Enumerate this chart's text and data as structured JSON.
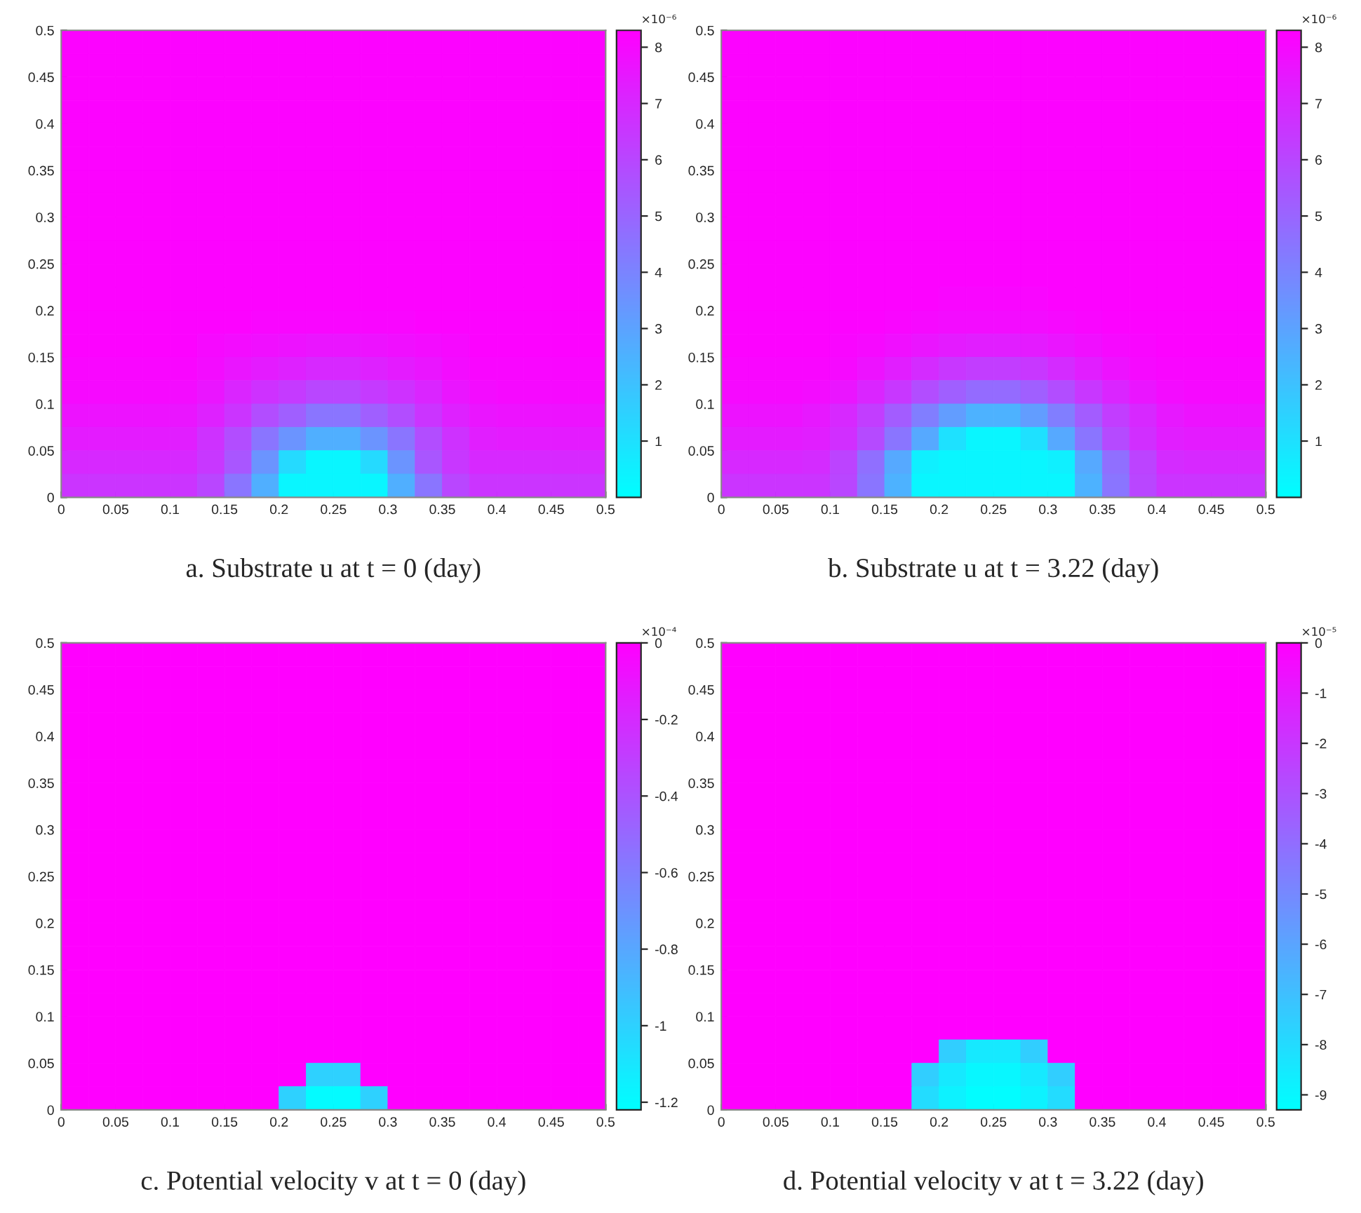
{
  "chart_data": [
    {
      "type": "heatmap",
      "title": "a. Substrate u at t = 0 (day)",
      "xlim": [
        0,
        0.5
      ],
      "ylim": [
        0,
        0.5
      ],
      "xticks": [
        0,
        0.05,
        0.1,
        0.15,
        0.2,
        0.25,
        0.3,
        0.35,
        0.4,
        0.45,
        0.5
      ],
      "yticks": [
        0,
        0.05,
        0.1,
        0.15,
        0.2,
        0.25,
        0.3,
        0.35,
        0.4,
        0.45,
        0.5
      ],
      "clim": [
        0,
        8.3
      ],
      "cticks": [
        1,
        2,
        3,
        4,
        5,
        6,
        7,
        8
      ],
      "clabel": "×10⁻⁶",
      "cells": [
        [
          8.2,
          8.2,
          8.2,
          8.2,
          8.2,
          8.2,
          8.2,
          8.2,
          8.2,
          8.2,
          8.2,
          8.2,
          8.2,
          8.2,
          8.2,
          8.2,
          8.2,
          8.2,
          8.2,
          8.2
        ],
        [
          8.2,
          8.2,
          8.2,
          8.2,
          8.2,
          8.2,
          8.2,
          8.2,
          8.2,
          8.2,
          8.2,
          8.2,
          8.2,
          8.2,
          8.2,
          8.2,
          8.2,
          8.2,
          8.2,
          8.2
        ],
        [
          8.2,
          8.2,
          8.2,
          8.2,
          8.2,
          8.2,
          8.2,
          8.2,
          8.2,
          8.2,
          8.2,
          8.2,
          8.2,
          8.2,
          8.2,
          8.2,
          8.2,
          8.2,
          8.2,
          8.2
        ],
        [
          8.2,
          8.2,
          8.2,
          8.2,
          8.2,
          8.2,
          8.2,
          8.2,
          8.2,
          8.2,
          8.2,
          8.2,
          8.2,
          8.2,
          8.2,
          8.2,
          8.2,
          8.2,
          8.2,
          8.2
        ],
        [
          8.2,
          8.2,
          8.2,
          8.2,
          8.2,
          8.2,
          8.2,
          8.2,
          8.2,
          8.2,
          8.2,
          8.2,
          8.2,
          8.2,
          8.2,
          8.2,
          8.2,
          8.2,
          8.2,
          8.2
        ],
        [
          8.2,
          8.2,
          8.2,
          8.2,
          8.2,
          8.2,
          8.2,
          8.2,
          8.2,
          8.2,
          8.2,
          8.2,
          8.2,
          8.2,
          8.2,
          8.2,
          8.2,
          8.2,
          8.2,
          8.2
        ],
        [
          8.2,
          8.2,
          8.2,
          8.2,
          8.2,
          8.2,
          8.2,
          8.2,
          8.2,
          8.2,
          8.2,
          8.2,
          8.2,
          8.2,
          8.2,
          8.2,
          8.2,
          8.2,
          8.2,
          8.2
        ],
        [
          8.2,
          8.2,
          8.2,
          8.2,
          8.2,
          8.2,
          8.2,
          8.2,
          8.2,
          8.2,
          8.2,
          8.2,
          8.2,
          8.2,
          8.2,
          8.2,
          8.2,
          8.2,
          8.2,
          8.2
        ],
        [
          8.2,
          8.2,
          8.2,
          8.2,
          8.2,
          8.2,
          8.2,
          8.2,
          8.2,
          8.2,
          8.2,
          8.2,
          8.2,
          8.2,
          8.2,
          8.2,
          8.2,
          8.2,
          8.2,
          8.2
        ],
        [
          8.2,
          8.2,
          8.2,
          8.2,
          8.2,
          8.2,
          8.2,
          8.2,
          8.2,
          8.2,
          8.2,
          8.2,
          8.2,
          8.2,
          8.2,
          8.2,
          8.2,
          8.2,
          8.2,
          8.2
        ],
        [
          8.2,
          8.2,
          8.2,
          8.2,
          8.2,
          8.2,
          8.2,
          8.2,
          8.2,
          8.2,
          8.2,
          8.2,
          8.2,
          8.2,
          8.2,
          8.2,
          8.2,
          8.2,
          8.2,
          8.2
        ],
        [
          8.2,
          8.2,
          8.2,
          8.2,
          8.2,
          8.2,
          8.2,
          8.2,
          8.2,
          8.2,
          8.2,
          8.2,
          8.2,
          8.2,
          8.2,
          8.2,
          8.2,
          8.2,
          8.2,
          8.2
        ],
        [
          8.2,
          8.2,
          8.2,
          8.2,
          8.2,
          8.2,
          8.2,
          8.1,
          8.1,
          8.1,
          8.1,
          8.1,
          8.1,
          8.2,
          8.2,
          8.2,
          8.2,
          8.2,
          8.2,
          8.2
        ],
        [
          8.2,
          8.2,
          8.2,
          8.2,
          8.2,
          8.0,
          7.9,
          7.8,
          7.7,
          7.6,
          7.6,
          7.7,
          7.8,
          7.9,
          8.0,
          8.2,
          8.2,
          8.2,
          8.2,
          8.2
        ],
        [
          8.1,
          8.1,
          8.1,
          8.1,
          8.1,
          7.9,
          7.6,
          7.4,
          7.2,
          7.0,
          7.0,
          7.2,
          7.4,
          7.6,
          7.9,
          8.1,
          8.1,
          8.1,
          8.1,
          8.1
        ],
        [
          8.0,
          8.0,
          8.0,
          8.0,
          7.9,
          7.6,
          7.1,
          6.7,
          6.4,
          6.0,
          6.0,
          6.4,
          6.7,
          7.1,
          7.6,
          7.9,
          8.0,
          8.0,
          8.0,
          8.0
        ],
        [
          7.7,
          7.7,
          7.7,
          7.7,
          7.6,
          7.2,
          6.6,
          5.8,
          5.2,
          4.5,
          4.5,
          5.2,
          5.8,
          6.6,
          7.2,
          7.6,
          7.7,
          7.7,
          7.7,
          7.7
        ],
        [
          7.4,
          7.4,
          7.4,
          7.4,
          7.3,
          6.7,
          5.8,
          4.5,
          3.5,
          2.6,
          2.6,
          3.5,
          4.5,
          5.8,
          6.7,
          7.3,
          7.4,
          7.4,
          7.4,
          7.4
        ],
        [
          7.0,
          7.0,
          7.0,
          7.0,
          7.0,
          6.5,
          5.5,
          3.5,
          1.2,
          0.3,
          0.3,
          1.2,
          3.5,
          5.5,
          6.5,
          7.0,
          7.0,
          7.0,
          7.0,
          7.0
        ],
        [
          6.6,
          6.6,
          6.6,
          6.6,
          6.6,
          6.0,
          4.5,
          2.6,
          0.3,
          0.3,
          0.3,
          0.3,
          2.6,
          4.5,
          6.0,
          6.6,
          6.6,
          6.6,
          6.6,
          6.6
        ]
      ]
    },
    {
      "type": "heatmap",
      "title": "b. Substrate u at t = 3.22 (day)",
      "xlim": [
        0,
        0.5
      ],
      "ylim": [
        0,
        0.5
      ],
      "xticks": [
        0,
        0.05,
        0.1,
        0.15,
        0.2,
        0.25,
        0.3,
        0.35,
        0.4,
        0.45,
        0.5
      ],
      "yticks": [
        0,
        0.05,
        0.1,
        0.15,
        0.2,
        0.25,
        0.3,
        0.35,
        0.4,
        0.45,
        0.5
      ],
      "clim": [
        0,
        8.3
      ],
      "cticks": [
        1,
        2,
        3,
        4,
        5,
        6,
        7,
        8
      ],
      "clabel": "×10⁻⁶",
      "cells": [
        [
          8.2,
          8.2,
          8.2,
          8.2,
          8.2,
          8.2,
          8.2,
          8.2,
          8.2,
          8.2,
          8.2,
          8.2,
          8.2,
          8.2,
          8.2,
          8.2,
          8.2,
          8.2,
          8.2,
          8.2
        ],
        [
          8.2,
          8.2,
          8.2,
          8.2,
          8.2,
          8.2,
          8.2,
          8.2,
          8.2,
          8.2,
          8.2,
          8.2,
          8.2,
          8.2,
          8.2,
          8.2,
          8.2,
          8.2,
          8.2,
          8.2
        ],
        [
          8.2,
          8.2,
          8.2,
          8.2,
          8.2,
          8.2,
          8.2,
          8.2,
          8.2,
          8.2,
          8.2,
          8.2,
          8.2,
          8.2,
          8.2,
          8.2,
          8.2,
          8.2,
          8.2,
          8.2
        ],
        [
          8.2,
          8.2,
          8.2,
          8.2,
          8.2,
          8.2,
          8.2,
          8.2,
          8.2,
          8.2,
          8.2,
          8.2,
          8.2,
          8.2,
          8.2,
          8.2,
          8.2,
          8.2,
          8.2,
          8.2
        ],
        [
          8.2,
          8.2,
          8.2,
          8.2,
          8.2,
          8.2,
          8.2,
          8.2,
          8.2,
          8.2,
          8.2,
          8.2,
          8.2,
          8.2,
          8.2,
          8.2,
          8.2,
          8.2,
          8.2,
          8.2
        ],
        [
          8.2,
          8.2,
          8.2,
          8.2,
          8.2,
          8.2,
          8.2,
          8.2,
          8.2,
          8.2,
          8.2,
          8.2,
          8.2,
          8.2,
          8.2,
          8.2,
          8.2,
          8.2,
          8.2,
          8.2
        ],
        [
          8.2,
          8.2,
          8.2,
          8.2,
          8.2,
          8.2,
          8.2,
          8.2,
          8.2,
          8.2,
          8.2,
          8.2,
          8.2,
          8.2,
          8.2,
          8.2,
          8.2,
          8.2,
          8.2,
          8.2
        ],
        [
          8.2,
          8.2,
          8.2,
          8.2,
          8.2,
          8.2,
          8.2,
          8.2,
          8.2,
          8.2,
          8.2,
          8.2,
          8.2,
          8.2,
          8.2,
          8.2,
          8.2,
          8.2,
          8.2,
          8.2
        ],
        [
          8.2,
          8.2,
          8.2,
          8.2,
          8.2,
          8.2,
          8.2,
          8.2,
          8.2,
          8.2,
          8.2,
          8.2,
          8.2,
          8.2,
          8.2,
          8.2,
          8.2,
          8.2,
          8.2,
          8.2
        ],
        [
          8.2,
          8.2,
          8.2,
          8.2,
          8.2,
          8.2,
          8.2,
          8.2,
          8.2,
          8.2,
          8.2,
          8.2,
          8.2,
          8.2,
          8.2,
          8.2,
          8.2,
          8.2,
          8.2,
          8.2
        ],
        [
          8.2,
          8.2,
          8.2,
          8.2,
          8.2,
          8.2,
          8.2,
          8.2,
          8.2,
          8.2,
          8.2,
          8.2,
          8.2,
          8.2,
          8.2,
          8.2,
          8.2,
          8.2,
          8.2,
          8.2
        ],
        [
          8.2,
          8.2,
          8.2,
          8.2,
          8.2,
          8.2,
          8.2,
          8.2,
          8.1,
          8.1,
          8.1,
          8.1,
          8.2,
          8.2,
          8.2,
          8.2,
          8.2,
          8.2,
          8.2,
          8.2
        ],
        [
          8.2,
          8.2,
          8.2,
          8.2,
          8.2,
          8.2,
          8.1,
          8.0,
          7.9,
          7.9,
          7.9,
          7.9,
          8.0,
          8.1,
          8.2,
          8.2,
          8.2,
          8.2,
          8.2,
          8.2
        ],
        [
          8.2,
          8.2,
          8.2,
          8.2,
          8.1,
          8.0,
          7.8,
          7.6,
          7.4,
          7.3,
          7.3,
          7.4,
          7.6,
          7.8,
          8.0,
          8.1,
          8.2,
          8.2,
          8.2,
          8.2
        ],
        [
          8.1,
          8.1,
          8.1,
          8.1,
          8.0,
          7.7,
          7.3,
          6.9,
          6.5,
          6.3,
          6.3,
          6.5,
          6.9,
          7.3,
          7.7,
          8.0,
          8.1,
          8.1,
          8.1,
          8.1
        ],
        [
          8.0,
          8.0,
          8.0,
          7.9,
          7.6,
          7.1,
          6.5,
          5.8,
          5.2,
          4.8,
          4.8,
          5.2,
          5.8,
          6.5,
          7.1,
          7.6,
          7.9,
          8.0,
          8.0,
          8.0
        ],
        [
          7.7,
          7.7,
          7.7,
          7.5,
          7.0,
          6.3,
          5.3,
          4.2,
          3.2,
          2.5,
          2.5,
          3.2,
          4.2,
          5.3,
          6.3,
          7.0,
          7.5,
          7.7,
          7.7,
          7.7
        ],
        [
          7.4,
          7.4,
          7.4,
          7.3,
          6.8,
          5.9,
          4.5,
          2.8,
          1.0,
          0.3,
          0.3,
          1.0,
          2.8,
          4.5,
          5.9,
          6.8,
          7.3,
          7.4,
          7.4,
          7.4
        ],
        [
          7.0,
          7.0,
          7.0,
          6.9,
          6.1,
          4.7,
          2.8,
          0.5,
          0.3,
          0.3,
          0.3,
          0.3,
          0.5,
          2.8,
          4.7,
          6.1,
          6.9,
          7.0,
          7.0,
          7.0
        ],
        [
          6.6,
          6.6,
          6.6,
          6.6,
          6.0,
          4.5,
          2.5,
          0.3,
          0.3,
          0.3,
          0.3,
          0.3,
          0.3,
          2.5,
          4.5,
          6.0,
          6.6,
          6.6,
          6.6,
          6.6
        ]
      ]
    },
    {
      "type": "heatmap",
      "title": "c. Potential velocity v at t = 0 (day)",
      "xlim": [
        0,
        0.5
      ],
      "ylim": [
        0,
        0.5
      ],
      "xticks": [
        0,
        0.05,
        0.1,
        0.15,
        0.2,
        0.25,
        0.3,
        0.35,
        0.4,
        0.45,
        0.5
      ],
      "yticks": [
        0,
        0.05,
        0.1,
        0.15,
        0.2,
        0.25,
        0.3,
        0.35,
        0.4,
        0.45,
        0.5
      ],
      "clim": [
        -1.22,
        0
      ],
      "cticks": [
        -1.2,
        -1,
        -0.8,
        -0.6,
        -0.4,
        -0.2,
        0
      ],
      "clabel": "×10⁻⁴",
      "cells": [
        [
          0,
          0,
          0,
          0,
          0,
          0,
          0,
          0,
          0,
          0,
          0,
          0,
          0,
          0,
          0,
          0,
          0,
          0,
          0,
          0
        ],
        [
          0,
          0,
          0,
          0,
          0,
          0,
          0,
          0,
          0,
          0,
          0,
          0,
          0,
          0,
          0,
          0,
          0,
          0,
          0,
          0
        ],
        [
          0,
          0,
          0,
          0,
          0,
          0,
          0,
          0,
          0,
          0,
          0,
          0,
          0,
          0,
          0,
          0,
          0,
          0,
          0,
          0
        ],
        [
          0,
          0,
          0,
          0,
          0,
          0,
          0,
          0,
          0,
          0,
          0,
          0,
          0,
          0,
          0,
          0,
          0,
          0,
          0,
          0
        ],
        [
          0,
          0,
          0,
          0,
          0,
          0,
          0,
          0,
          0,
          0,
          0,
          0,
          0,
          0,
          0,
          0,
          0,
          0,
          0,
          0
        ],
        [
          0,
          0,
          0,
          0,
          0,
          0,
          0,
          0,
          0,
          0,
          0,
          0,
          0,
          0,
          0,
          0,
          0,
          0,
          0,
          0
        ],
        [
          0,
          0,
          0,
          0,
          0,
          0,
          0,
          0,
          0,
          0,
          0,
          0,
          0,
          0,
          0,
          0,
          0,
          0,
          0,
          0
        ],
        [
          0,
          0,
          0,
          0,
          0,
          0,
          0,
          0,
          0,
          0,
          0,
          0,
          0,
          0,
          0,
          0,
          0,
          0,
          0,
          0
        ],
        [
          0,
          0,
          0,
          0,
          0,
          0,
          0,
          0,
          0,
          0,
          0,
          0,
          0,
          0,
          0,
          0,
          0,
          0,
          0,
          0
        ],
        [
          0,
          0,
          0,
          0,
          0,
          0,
          0,
          0,
          0,
          0,
          0,
          0,
          0,
          0,
          0,
          0,
          0,
          0,
          0,
          0
        ],
        [
          0,
          0,
          0,
          0,
          0,
          0,
          0,
          0,
          0,
          0,
          0,
          0,
          0,
          0,
          0,
          0,
          0,
          0,
          0,
          0
        ],
        [
          0,
          0,
          0,
          0,
          0,
          0,
          0,
          0,
          0,
          0,
          0,
          0,
          0,
          0,
          0,
          0,
          0,
          0,
          0,
          0
        ],
        [
          0,
          0,
          0,
          0,
          0,
          0,
          0,
          0,
          0,
          0,
          0,
          0,
          0,
          0,
          0,
          0,
          0,
          0,
          0,
          0
        ],
        [
          0,
          0,
          0,
          0,
          0,
          0,
          0,
          0,
          0,
          0,
          0,
          0,
          0,
          0,
          0,
          0,
          0,
          0,
          0,
          0
        ],
        [
          0,
          0,
          0,
          0,
          0,
          0,
          0,
          0,
          0,
          0,
          0,
          0,
          0,
          0,
          0,
          0,
          0,
          0,
          0,
          0
        ],
        [
          0,
          0,
          0,
          0,
          0,
          0,
          0,
          0,
          0,
          0,
          0,
          0,
          0,
          0,
          0,
          0,
          0,
          0,
          0,
          0
        ],
        [
          0,
          0,
          0,
          0,
          0,
          0,
          0,
          0,
          0,
          0,
          0,
          0,
          0,
          0,
          0,
          0,
          0,
          0,
          0,
          0
        ],
        [
          0,
          0,
          0,
          0,
          0,
          0,
          0,
          0,
          0,
          0,
          0,
          0,
          0,
          0,
          0,
          0,
          0,
          0,
          0,
          0
        ],
        [
          0,
          0,
          0,
          0,
          0,
          0,
          0,
          0,
          0,
          -1.0,
          -1.0,
          0,
          0,
          0,
          0,
          0,
          0,
          0,
          0,
          0
        ],
        [
          0,
          0,
          0,
          0,
          0,
          0,
          0,
          0,
          -1.0,
          -1.2,
          -1.2,
          -1.0,
          0,
          0,
          0,
          0,
          0,
          0,
          0,
          0
        ]
      ]
    },
    {
      "type": "heatmap",
      "title": "d. Potential velocity v at t = 3.22 (day)",
      "xlim": [
        0,
        0.5
      ],
      "ylim": [
        0,
        0.5
      ],
      "xticks": [
        0,
        0.05,
        0.1,
        0.15,
        0.2,
        0.25,
        0.3,
        0.35,
        0.4,
        0.45,
        0.5
      ],
      "yticks": [
        0,
        0.05,
        0.1,
        0.15,
        0.2,
        0.25,
        0.3,
        0.35,
        0.4,
        0.45,
        0.5
      ],
      "clim": [
        -9.3,
        0
      ],
      "cticks": [
        -9,
        -8,
        -7,
        -6,
        -5,
        -4,
        -3,
        -2,
        -1,
        0
      ],
      "clabel": "×10⁻⁵",
      "cells": [
        [
          0,
          0,
          0,
          0,
          0,
          0,
          0,
          0,
          0,
          0,
          0,
          0,
          0,
          0,
          0,
          0,
          0,
          0,
          0,
          0
        ],
        [
          0,
          0,
          0,
          0,
          0,
          0,
          0,
          0,
          0,
          0,
          0,
          0,
          0,
          0,
          0,
          0,
          0,
          0,
          0,
          0
        ],
        [
          0,
          0,
          0,
          0,
          0,
          0,
          0,
          0,
          0,
          0,
          0,
          0,
          0,
          0,
          0,
          0,
          0,
          0,
          0,
          0
        ],
        [
          0,
          0,
          0,
          0,
          0,
          0,
          0,
          0,
          0,
          0,
          0,
          0,
          0,
          0,
          0,
          0,
          0,
          0,
          0,
          0
        ],
        [
          0,
          0,
          0,
          0,
          0,
          0,
          0,
          0,
          0,
          0,
          0,
          0,
          0,
          0,
          0,
          0,
          0,
          0,
          0,
          0
        ],
        [
          0,
          0,
          0,
          0,
          0,
          0,
          0,
          0,
          0,
          0,
          0,
          0,
          0,
          0,
          0,
          0,
          0,
          0,
          0,
          0
        ],
        [
          0,
          0,
          0,
          0,
          0,
          0,
          0,
          0,
          0,
          0,
          0,
          0,
          0,
          0,
          0,
          0,
          0,
          0,
          0,
          0
        ],
        [
          0,
          0,
          0,
          0,
          0,
          0,
          0,
          0,
          0,
          0,
          0,
          0,
          0,
          0,
          0,
          0,
          0,
          0,
          0,
          0
        ],
        [
          0,
          0,
          0,
          0,
          0,
          0,
          0,
          0,
          0,
          0,
          0,
          0,
          0,
          0,
          0,
          0,
          0,
          0,
          0,
          0
        ],
        [
          0,
          0,
          0,
          0,
          0,
          0,
          0,
          0,
          0,
          0,
          0,
          0,
          0,
          0,
          0,
          0,
          0,
          0,
          0,
          0
        ],
        [
          0,
          0,
          0,
          0,
          0,
          0,
          0,
          0,
          0,
          0,
          0,
          0,
          0,
          0,
          0,
          0,
          0,
          0,
          0,
          0
        ],
        [
          0,
          0,
          0,
          0,
          0,
          0,
          0,
          0,
          0,
          0,
          0,
          0,
          0,
          0,
          0,
          0,
          0,
          0,
          0,
          0
        ],
        [
          0,
          0,
          0,
          0,
          0,
          0,
          0,
          0,
          0,
          0,
          0,
          0,
          0,
          0,
          0,
          0,
          0,
          0,
          0,
          0
        ],
        [
          0,
          0,
          0,
          0,
          0,
          0,
          0,
          0,
          0,
          0,
          0,
          0,
          0,
          0,
          0,
          0,
          0,
          0,
          0,
          0
        ],
        [
          0,
          0,
          0,
          0,
          0,
          0,
          0,
          0,
          0,
          0,
          0,
          0,
          0,
          0,
          0,
          0,
          0,
          0,
          0,
          0
        ],
        [
          0,
          0,
          0,
          0,
          0,
          0,
          0,
          0,
          0,
          0,
          0,
          0,
          0,
          0,
          0,
          0,
          0,
          0,
          0,
          0
        ],
        [
          0,
          0,
          0,
          0,
          0,
          0,
          0,
          0,
          0,
          0,
          0,
          0,
          0,
          0,
          0,
          0,
          0,
          0,
          0,
          0
        ],
        [
          0,
          0,
          0,
          0,
          0,
          0,
          0,
          0,
          -7.5,
          -8.5,
          -8.5,
          -7.5,
          0,
          0,
          0,
          0,
          0,
          0,
          0,
          0
        ],
        [
          0,
          0,
          0,
          0,
          0,
          0,
          0,
          -7.5,
          -8.5,
          -9.0,
          -9.0,
          -8.5,
          -7.5,
          0,
          0,
          0,
          0,
          0,
          0,
          0
        ],
        [
          0,
          0,
          0,
          0,
          0,
          0,
          0,
          -8.0,
          -8.8,
          -9.2,
          -9.2,
          -8.8,
          -8.0,
          0,
          0,
          0,
          0,
          0,
          0,
          0
        ]
      ]
    }
  ]
}
